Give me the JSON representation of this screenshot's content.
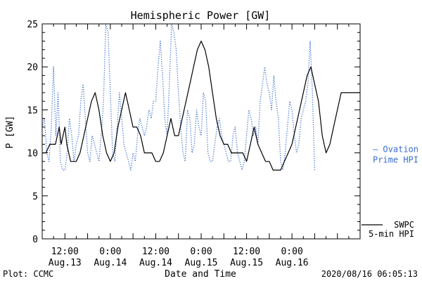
{
  "chart_data": {
    "type": "line",
    "title": "Hemispheric Power [GW]",
    "xlabel": "Date and Time",
    "ylabel": "P [GW]",
    "ylim": [
      0,
      25
    ],
    "xlim_hours": [
      0,
      84
    ],
    "y_ticks": [
      0,
      5,
      10,
      15,
      20,
      25
    ],
    "x_ticks": [
      {
        "hour": 6,
        "time": "12:00",
        "date": "Aug.13"
      },
      {
        "hour": 18,
        "time": "0:00",
        "date": "Aug.14"
      },
      {
        "hour": 30,
        "time": "12:00",
        "date": "Aug.14"
      },
      {
        "hour": 42,
        "time": "0:00",
        "date": "Aug.15"
      },
      {
        "hour": 54,
        "time": "12:00",
        "date": "Aug.15"
      },
      {
        "hour": 66,
        "time": "0:00",
        "date": "Aug.16"
      }
    ],
    "grid": false,
    "series": [
      {
        "name": "Ovation Prime HPI",
        "legend_lines": [
          "— Ovation",
          "Prime HPI"
        ],
        "color": "#3a6fd0",
        "style": "dotted",
        "x": [
          0.0,
          0.6,
          1.2,
          1.8,
          2.4,
          3.0,
          3.6,
          4.2,
          4.8,
          5.4,
          6.0,
          6.6,
          7.2,
          7.8,
          8.4,
          9.0,
          9.6,
          10.2,
          10.8,
          11.4,
          12.0,
          12.6,
          13.2,
          13.8,
          14.4,
          15.0,
          15.6,
          16.2,
          16.8,
          17.4,
          18.0,
          18.6,
          19.2,
          19.8,
          20.4,
          21.0,
          21.6,
          22.2,
          22.8,
          23.4,
          24.0,
          24.6,
          25.2,
          25.8,
          26.4,
          27.0,
          27.6,
          28.2,
          28.8,
          29.4,
          30.0,
          30.6,
          31.2,
          31.8,
          32.4,
          33.0,
          33.6,
          34.2,
          34.8,
          35.4,
          36.0,
          36.6,
          37.2,
          37.8,
          38.4,
          39.0,
          39.6,
          40.2,
          40.8,
          41.4,
          42.0,
          42.6,
          43.2,
          43.8,
          44.4,
          45.0,
          45.6,
          46.2,
          46.8,
          47.4,
          48.0,
          48.6,
          49.2,
          49.8,
          50.4,
          51.0,
          51.6,
          52.2,
          52.8,
          53.4,
          54.0,
          54.6,
          55.2,
          55.8,
          56.4,
          57.0,
          57.6,
          58.2,
          58.8,
          59.4,
          60.0,
          60.6,
          61.2,
          61.8,
          62.4,
          63.0,
          63.6,
          64.2,
          64.8,
          65.4,
          66.0,
          66.6,
          67.2,
          67.8,
          68.4,
          69.0,
          69.6,
          70.2,
          70.8,
          71.4,
          72.0
        ],
        "y": [
          13,
          14,
          10,
          9,
          13,
          20,
          12,
          17,
          9,
          8,
          8,
          10,
          14,
          12,
          9,
          11,
          12,
          16,
          18,
          14,
          10,
          9,
          12,
          11,
          10,
          9,
          12,
          16,
          25,
          24,
          17,
          10,
          9,
          13,
          17,
          14,
          11,
          10,
          9,
          8,
          10,
          9,
          12,
          14,
          13,
          12,
          13,
          15,
          14,
          16,
          16,
          20,
          23,
          19,
          14,
          12,
          18,
          25,
          24,
          22,
          17,
          13,
          10,
          9,
          15,
          14,
          10,
          11,
          15,
          13,
          12,
          17,
          16,
          10,
          9,
          9,
          11,
          13,
          14,
          12,
          11,
          10,
          9,
          9,
          12,
          13,
          10,
          9,
          8,
          9,
          12,
          15,
          14,
          12,
          13,
          11,
          16,
          18,
          20,
          18,
          17,
          15,
          19,
          16,
          14,
          9,
          8,
          10,
          13,
          16,
          15,
          12,
          10,
          11,
          14,
          15,
          16,
          18,
          23,
          17,
          8
        ]
      },
      {
        "name": "SWPC 5-min HPI",
        "legend_lines": [
          "SWPC",
          "5-min HPI"
        ],
        "color": "#000000",
        "style": "solid",
        "x": [
          0,
          1.0,
          2.0,
          2.5,
          3.5,
          4.5,
          5.0,
          5.5,
          6.0,
          6.5,
          7.0,
          7.5,
          8.0,
          8.5,
          9.0,
          10.0,
          11.0,
          12.0,
          13.0,
          14.0,
          15.0,
          16.0,
          17.0,
          18.0,
          19.0,
          20.0,
          21.0,
          22.0,
          23.0,
          24.0,
          25.0,
          26.0,
          27.0,
          28.0,
          29.0,
          30.0,
          31.0,
          32.0,
          33.0,
          34.0,
          35.0,
          36.0,
          37.0,
          38.0,
          39.0,
          40.0,
          41.0,
          42.0,
          43.0,
          44.0,
          45.0,
          46.0,
          47.0,
          48.0,
          49.0,
          50.0,
          51.0,
          52.0,
          53.0,
          54.0,
          55.0,
          56.0,
          57.0,
          58.0,
          59.0,
          60.0,
          61.0,
          62.0,
          63.0,
          64.0,
          65.0,
          66.0,
          67.0,
          68.0,
          69.0,
          70.0,
          71.0,
          72.0,
          73.0,
          74.0,
          75.0,
          76.0,
          77.0,
          78.0,
          79.0,
          80.0,
          81.0,
          82.0,
          83.0,
          84.0
        ],
        "y": [
          10,
          10,
          11,
          11,
          11,
          13,
          11,
          12,
          13,
          11,
          10,
          9,
          9,
          9,
          9,
          10,
          12,
          14,
          16,
          17,
          15,
          12,
          10,
          9,
          10,
          13,
          15,
          17,
          15,
          13,
          13,
          12,
          10,
          10,
          10,
          9,
          9,
          10,
          12,
          14,
          12,
          12,
          14,
          16,
          18,
          20,
          22,
          23,
          22,
          20,
          17,
          14,
          12,
          11,
          11,
          10,
          10,
          10,
          10,
          9,
          11,
          13,
          11,
          10,
          9,
          9,
          8,
          8,
          8,
          9,
          10,
          11,
          13,
          15,
          17,
          19,
          20,
          18,
          16,
          12,
          10,
          11,
          13,
          15,
          17,
          17,
          17,
          17,
          17,
          17
        ]
      }
    ]
  },
  "footer": {
    "plot_credit": "Plot: CCMC",
    "timestamp": "2020/08/16 06:05:13"
  }
}
